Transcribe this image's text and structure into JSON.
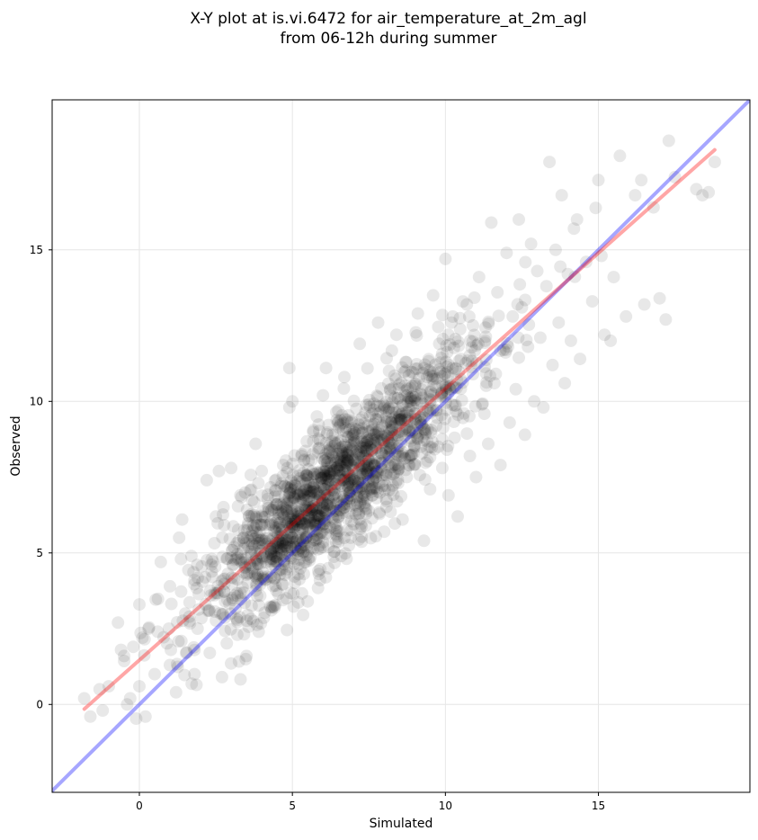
{
  "chart_data": {
    "type": "scatter",
    "title_lines": [
      "X-Y plot at is.vi.6472 for air_temperature_at_2m_agl",
      "from 06-12h during summer"
    ],
    "xlabel": "Simulated",
    "ylabel": "Observed",
    "xlim": [
      -2.85,
      19.95
    ],
    "ylim": [
      -2.9,
      19.95
    ],
    "xticks": [
      0,
      5,
      10,
      15
    ],
    "yticks": [
      0,
      5,
      10,
      15
    ],
    "grid": true,
    "point_color": "#000000",
    "identity_line": {
      "color": "#0000ff"
    },
    "regression_line": {
      "color": "#ff0000",
      "x": [
        -1.8,
        18.8
      ],
      "y": [
        -0.15,
        18.3
      ]
    },
    "cluster_center": [
      6.4,
      7.2
    ],
    "spread_x": 2.3,
    "n_points": 1800,
    "points": [
      [
        -1.8,
        0.2
      ],
      [
        -1.6,
        -0.4
      ],
      [
        -1.3,
        0.5
      ],
      [
        -1.2,
        -0.2
      ],
      [
        -1.0,
        0.6
      ],
      [
        -0.7,
        2.7
      ],
      [
        -0.6,
        1.8
      ],
      [
        -0.5,
        1.6
      ],
      [
        -0.4,
        0.0
      ],
      [
        -0.3,
        0.2
      ],
      [
        -0.2,
        1.9
      ],
      [
        0.0,
        3.3
      ],
      [
        0.0,
        0.6
      ],
      [
        0.1,
        2.2
      ],
      [
        0.2,
        -0.4
      ],
      [
        0.3,
        2.5
      ],
      [
        0.5,
        1.0
      ],
      [
        0.6,
        2.4
      ],
      [
        0.7,
        4.7
      ],
      [
        1.0,
        1.3
      ],
      [
        1.0,
        3.9
      ],
      [
        1.2,
        0.4
      ],
      [
        1.3,
        5.5
      ],
      [
        1.4,
        6.1
      ],
      [
        1.5,
        3.0
      ],
      [
        1.7,
        4.9
      ],
      [
        1.8,
        1.0
      ],
      [
        1.8,
        4.1
      ],
      [
        1.9,
        2.5
      ],
      [
        2.2,
        7.4
      ],
      [
        2.3,
        1.7
      ],
      [
        2.5,
        6.2
      ],
      [
        2.6,
        7.7
      ],
      [
        2.7,
        0.9
      ],
      [
        2.8,
        3.4
      ],
      [
        3.0,
        7.8
      ],
      [
        3.2,
        2.3
      ],
      [
        3.3,
        6.9
      ],
      [
        3.5,
        1.6
      ],
      [
        3.6,
        5.4
      ],
      [
        3.8,
        8.6
      ],
      [
        3.9,
        2.4
      ],
      [
        4.0,
        7.7
      ],
      [
        4.1,
        4.1
      ],
      [
        4.3,
        3.2
      ],
      [
        4.5,
        6.6
      ],
      [
        4.7,
        7.9
      ],
      [
        4.8,
        3.5
      ],
      [
        4.9,
        11.1
      ],
      [
        4.9,
        9.8
      ],
      [
        5.0,
        10.0
      ],
      [
        5.0,
        5.9
      ],
      [
        5.2,
        4.3
      ],
      [
        5.3,
        8.2
      ],
      [
        5.5,
        3.4
      ],
      [
        5.6,
        6.9
      ],
      [
        5.8,
        9.5
      ],
      [
        5.9,
        4.1
      ],
      [
        6.0,
        10.2
      ],
      [
        6.0,
        5.2
      ],
      [
        6.1,
        11.1
      ],
      [
        6.2,
        7.4
      ],
      [
        6.3,
        8.5
      ],
      [
        6.4,
        6.0
      ],
      [
        6.5,
        9.7
      ],
      [
        6.6,
        4.9
      ],
      [
        6.7,
        10.8
      ],
      [
        6.8,
        7.2
      ],
      [
        6.9,
        5.5
      ],
      [
        7.0,
        8.9
      ],
      [
        7.1,
        6.4
      ],
      [
        7.2,
        11.9
      ],
      [
        7.3,
        7.8
      ],
      [
        7.4,
        5.9
      ],
      [
        7.5,
        9.9
      ],
      [
        7.6,
        6.9
      ],
      [
        7.8,
        12.6
      ],
      [
        7.9,
        8.3
      ],
      [
        8.0,
        5.7
      ],
      [
        8.2,
        10.4
      ],
      [
        8.3,
        7.6
      ],
      [
        8.4,
        12.2
      ],
      [
        8.5,
        9.0
      ],
      [
        8.6,
        6.1
      ],
      [
        8.7,
        11.3
      ],
      [
        8.8,
        7.9
      ],
      [
        9.0,
        9.6
      ],
      [
        9.1,
        12.9
      ],
      [
        9.2,
        8.5
      ],
      [
        9.3,
        5.4
      ],
      [
        9.4,
        10.8
      ],
      [
        9.5,
        7.1
      ],
      [
        9.6,
        13.5
      ],
      [
        9.7,
        9.2
      ],
      [
        9.8,
        11.9
      ],
      [
        9.9,
        7.8
      ],
      [
        10.0,
        14.7
      ],
      [
        10.0,
        10.5
      ],
      [
        10.1,
        6.9
      ],
      [
        10.2,
        12.6
      ],
      [
        10.3,
        8.8
      ],
      [
        10.4,
        6.2
      ],
      [
        10.5,
        11.4
      ],
      [
        10.6,
        9.6
      ],
      [
        10.7,
        13.2
      ],
      [
        10.8,
        8.2
      ],
      [
        10.9,
        10.9
      ],
      [
        11.0,
        7.5
      ],
      [
        11.1,
        14.1
      ],
      [
        11.2,
        9.9
      ],
      [
        11.3,
        12.0
      ],
      [
        11.4,
        8.6
      ],
      [
        11.5,
        15.9
      ],
      [
        11.6,
        10.6
      ],
      [
        11.7,
        13.6
      ],
      [
        11.8,
        7.9
      ],
      [
        11.9,
        11.7
      ],
      [
        12.0,
        14.9
      ],
      [
        12.1,
        9.3
      ],
      [
        12.2,
        12.8
      ],
      [
        12.3,
        10.4
      ],
      [
        12.4,
        16.0
      ],
      [
        12.5,
        13.1
      ],
      [
        12.6,
        8.9
      ],
      [
        12.7,
        11.8
      ],
      [
        12.8,
        15.2
      ],
      [
        12.9,
        10.0
      ],
      [
        13.0,
        14.3
      ],
      [
        13.1,
        12.1
      ],
      [
        13.2,
        9.8
      ],
      [
        13.3,
        13.8
      ],
      [
        13.4,
        17.9
      ],
      [
        13.5,
        11.2
      ],
      [
        13.6,
        15.0
      ],
      [
        13.7,
        12.6
      ],
      [
        13.8,
        16.8
      ],
      [
        13.9,
        10.6
      ],
      [
        14.0,
        14.2
      ],
      [
        14.1,
        12.0
      ],
      [
        14.2,
        15.7
      ],
      [
        14.3,
        16.0
      ],
      [
        14.4,
        11.4
      ],
      [
        14.6,
        14.6
      ],
      [
        14.8,
        13.3
      ],
      [
        15.0,
        17.3
      ],
      [
        15.1,
        14.8
      ],
      [
        15.2,
        12.2
      ],
      [
        15.4,
        12.0
      ],
      [
        15.5,
        14.1
      ],
      [
        15.7,
        18.1
      ],
      [
        15.9,
        12.8
      ],
      [
        16.2,
        16.8
      ],
      [
        16.4,
        17.3
      ],
      [
        16.5,
        13.2
      ],
      [
        16.8,
        16.4
      ],
      [
        17.0,
        13.4
      ],
      [
        17.2,
        12.7
      ],
      [
        17.3,
        18.6
      ],
      [
        17.5,
        17.4
      ],
      [
        18.2,
        17.0
      ],
      [
        18.4,
        16.8
      ],
      [
        18.6,
        16.9
      ],
      [
        18.8,
        17.9
      ]
    ]
  }
}
